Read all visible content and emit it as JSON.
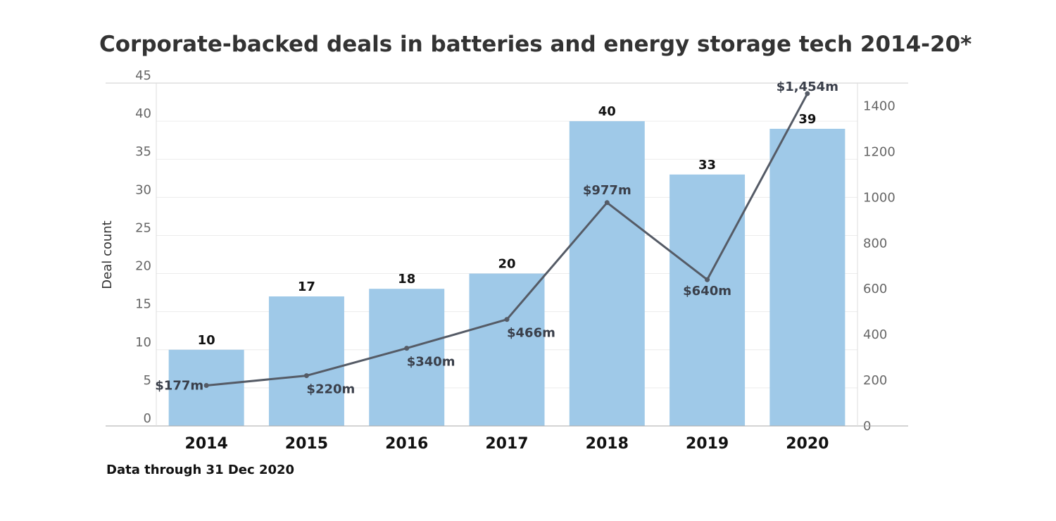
{
  "chart_data": {
    "type": "bar",
    "title": "Corporate-backed deals in batteries and energy storage tech 2014-20*",
    "ylabel": "Deal count",
    "y2label": "",
    "note": "Data through 31 Dec 2020",
    "categories": [
      "2014",
      "2015",
      "2016",
      "2017",
      "2018",
      "2019",
      "2020"
    ],
    "ylim": [
      0,
      45
    ],
    "y_ticks": [
      0,
      5,
      10,
      15,
      20,
      25,
      30,
      35,
      40,
      45
    ],
    "y2lim": [
      0,
      1500
    ],
    "y2_ticks": [
      0,
      200,
      400,
      600,
      800,
      1000,
      1200,
      1400
    ],
    "grid": true,
    "series": [
      {
        "name": "Deal count",
        "kind": "bar",
        "axis": "left",
        "color": "#9fc9e8",
        "values": [
          10,
          17,
          18,
          20,
          40,
          33,
          39
        ],
        "labels": [
          "10",
          "17",
          "18",
          "20",
          "40",
          "33",
          "39"
        ]
      },
      {
        "name": "Deal value",
        "kind": "line",
        "axis": "right",
        "color": "#555b66",
        "values": [
          177,
          220,
          340,
          466,
          977,
          640,
          1454
        ],
        "labels": [
          "$177m",
          "$220m",
          "$340m",
          "$466m",
          "$977m",
          "$640m",
          "$1,454m"
        ]
      }
    ]
  }
}
